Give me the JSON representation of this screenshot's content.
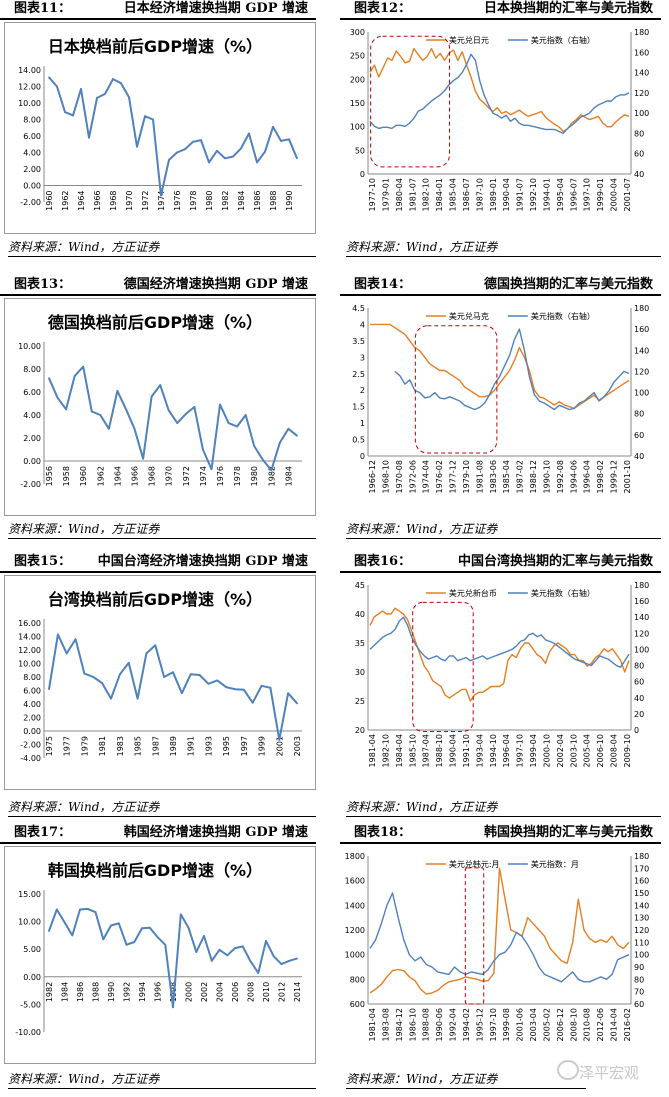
{
  "colors": {
    "blue": "#4F81BD",
    "orange": "#E67E22",
    "red": "#C00000"
  },
  "sections": [
    {
      "left": {
        "num": "图表11：",
        "title": "日本经济增速换挡期 GDP 增速"
      },
      "right": {
        "num": "图表12：",
        "title": "日本换挡期的汇率与美元指数"
      },
      "source": "资料来源：Wind，方正证券"
    },
    {
      "left": {
        "num": "图表13：",
        "title": "德国经济增速换挡期 GDP 增速"
      },
      "right": {
        "num": "图表14：",
        "title": "德国换挡期的汇率与美元指数"
      },
      "source": "资料来源：Wind，方正证券"
    },
    {
      "left": {
        "num": "图表15：",
        "title": "中国台湾经济增速换挡期 GDP 增速"
      },
      "right": {
        "num": "图表16：",
        "title": "中国台湾换挡期的汇率与美元指数"
      },
      "source": "资料来源：Wind，方正证券"
    },
    {
      "left": {
        "num": "图表17：",
        "title": "韩国经济增速换挡期 GDP 增速"
      },
      "right": {
        "num": "图表18：",
        "title": "韩国换挡期的汇率与美元指数"
      },
      "source": "资料来源：Wind，方正证券"
    }
  ],
  "watermark": "泽平宏观",
  "chart_data": [
    {
      "type": "line",
      "title": "日本换档前后GDP增速（%）",
      "x": [
        1960,
        1961,
        1962,
        1963,
        1964,
        1965,
        1966,
        1967,
        1968,
        1969,
        1970,
        1971,
        1972,
        1973,
        1974,
        1975,
        1976,
        1977,
        1978,
        1979,
        1980,
        1981,
        1982,
        1983,
        1984,
        1985,
        1986,
        1987,
        1988,
        1989,
        1990,
        1991
      ],
      "values": [
        13.1,
        12.0,
        8.9,
        8.5,
        11.7,
        5.8,
        10.6,
        11.1,
        12.9,
        12.4,
        10.7,
        4.7,
        8.4,
        8.0,
        -1.2,
        3.1,
        4.0,
        4.4,
        5.3,
        5.5,
        2.8,
        4.2,
        3.3,
        3.5,
        4.5,
        6.3,
        2.8,
        4.1,
        7.1,
        5.4,
        5.6,
        3.3
      ],
      "xticks": [
        "1960",
        "1962",
        "1964",
        "1966",
        "1968",
        "1970",
        "1972",
        "1974",
        "1976",
        "1978",
        "1980",
        "1982",
        "1984",
        "1986",
        "1988",
        "1990"
      ],
      "ylim": [
        -2,
        14
      ],
      "yticks": [
        "-2.00",
        "0.00",
        "2.00",
        "4.00",
        "6.00",
        "8.00",
        "10.00",
        "12.00",
        "14.00"
      ]
    },
    {
      "type": "line",
      "title": "日本换挡期的汇率与美元指数",
      "series": [
        {
          "name": "美元兑日元",
          "axis": "left",
          "values": [
            215,
            230,
            205,
            225,
            245,
            240,
            260,
            248,
            235,
            238,
            265,
            252,
            240,
            248,
            265,
            245,
            255,
            240,
            255,
            262,
            240,
            258,
            230,
            205,
            175,
            158,
            150,
            140,
            132,
            140,
            128,
            132,
            125,
            130,
            135,
            128,
            122,
            125,
            128,
            132,
            120,
            112,
            105,
            100,
            90,
            95,
            108,
            115,
            125,
            120,
            115,
            118,
            122,
            108,
            100,
            100,
            110,
            118,
            125,
            122
          ]
        },
        {
          "name": "美元指数（右轴）",
          "axis": "right",
          "values": [
            92,
            87,
            85,
            86,
            86,
            85,
            88,
            88,
            87,
            90,
            95,
            102,
            104,
            108,
            112,
            115,
            118,
            122,
            128,
            132,
            135,
            140,
            148,
            158,
            152,
            132,
            118,
            108,
            100,
            98,
            95,
            98,
            92,
            95,
            90,
            88,
            88,
            87,
            86,
            85,
            84,
            84,
            84,
            82,
            80,
            85,
            88,
            92,
            96,
            98,
            100,
            105,
            108,
            110,
            112,
            112,
            116,
            118,
            118,
            120
          ]
        }
      ],
      "xticks": [
        "1977-10",
        "1979-01",
        "1980-04",
        "1981-07",
        "1982-10",
        "1984-01",
        "1985-04",
        "1986-07",
        "1987-10",
        "1989-01",
        "1990-04",
        "1991-07",
        "1992-10",
        "1994-01",
        "1995-04",
        "1996-07",
        "1997-10",
        "1999-01",
        "2000-04",
        "2001-07"
      ],
      "ylim_left": [
        0,
        300
      ],
      "yticks_left": [
        "0",
        "50",
        "100",
        "150",
        "200",
        "250",
        "300"
      ],
      "ylim_right": [
        40,
        180
      ],
      "yticks_right": [
        "40",
        "60",
        "80",
        "100",
        "120",
        "140",
        "160",
        "180"
      ]
    },
    {
      "type": "line",
      "title": "德国换档前后GDP增速（%）",
      "x": [
        1956,
        1957,
        1958,
        1959,
        1960,
        1961,
        1962,
        1963,
        1964,
        1965,
        1966,
        1967,
        1968,
        1969,
        1970,
        1971,
        1972,
        1973,
        1974,
        1975,
        1976,
        1977,
        1978,
        1979,
        1980,
        1981,
        1982,
        1983,
        1984,
        1985
      ],
      "values": [
        7.2,
        5.5,
        4.5,
        7.4,
        8.2,
        4.3,
        4.0,
        2.8,
        6.1,
        4.5,
        2.8,
        0.2,
        5.6,
        6.6,
        4.4,
        3.3,
        4.1,
        4.7,
        1.0,
        -0.7,
        4.9,
        3.3,
        3.0,
        4.0,
        1.3,
        0.1,
        -0.8,
        1.6,
        2.8,
        2.2
      ],
      "xticks": [
        "1956",
        "1958",
        "1960",
        "1962",
        "1964",
        "1966",
        "1968",
        "1970",
        "1972",
        "1974",
        "1976",
        "1978",
        "1980",
        "1982",
        "1984"
      ],
      "ylim": [
        -2,
        10
      ],
      "yticks": [
        "-2.00",
        "0.00",
        "2.00",
        "4.00",
        "6.00",
        "8.00",
        "10.00"
      ]
    },
    {
      "type": "line",
      "title": "德国换挡期的汇率与美元指数",
      "series": [
        {
          "name": "美元兑马克",
          "axis": "left",
          "values": [
            4.0,
            4.0,
            4.0,
            4.0,
            4.0,
            3.9,
            3.8,
            3.7,
            3.5,
            3.3,
            3.2,
            3.0,
            2.8,
            2.7,
            2.6,
            2.6,
            2.5,
            2.4,
            2.3,
            2.1,
            2.0,
            1.9,
            1.8,
            1.8,
            1.85,
            2.0,
            2.2,
            2.4,
            2.6,
            2.9,
            3.3,
            3.0,
            2.6,
            2.0,
            1.8,
            1.75,
            1.65,
            1.55,
            1.65,
            1.55,
            1.5,
            1.45,
            1.55,
            1.65,
            1.75,
            1.85,
            1.7,
            1.8,
            1.9,
            2.0,
            2.1,
            2.2,
            2.3
          ]
        },
        {
          "name": "美元指数（右轴）",
          "axis": "right",
          "values": [
            null,
            null,
            null,
            null,
            null,
            120,
            116,
            108,
            112,
            102,
            100,
            95,
            96,
            100,
            95,
            94,
            96,
            94,
            92,
            88,
            86,
            84,
            86,
            90,
            98,
            108,
            115,
            125,
            135,
            150,
            160,
            140,
            115,
            98,
            92,
            90,
            87,
            84,
            88,
            86,
            84,
            85,
            90,
            92,
            96,
            100,
            92,
            96,
            102,
            110,
            115,
            120,
            118
          ]
        }
      ],
      "xticks": [
        "1966-12",
        "1968-10",
        "1970-08",
        "1972-06",
        "1974-04",
        "1976-02",
        "1977-12",
        "1979-10",
        "1981-08",
        "1983-06",
        "1985-04",
        "1987-02",
        "1988-12",
        "1990-10",
        "1992-08",
        "1994-06",
        "1996-04",
        "1998-02",
        "1999-12",
        "2001-10"
      ],
      "ylim_left": [
        0,
        4.5
      ],
      "yticks_left": [
        "0",
        "0.5",
        "1",
        "1.5",
        "2",
        "2.5",
        "3",
        "3.5",
        "4",
        "4.5"
      ],
      "ylim_right": [
        40,
        180
      ],
      "yticks_right": [
        "40",
        "60",
        "80",
        "100",
        "120",
        "140",
        "160",
        "180"
      ]
    },
    {
      "type": "line",
      "title": "台湾换档前后GDP增速（%）",
      "x": [
        1975,
        1976,
        1977,
        1978,
        1979,
        1980,
        1981,
        1982,
        1983,
        1984,
        1985,
        1986,
        1987,
        1988,
        1989,
        1990,
        1991,
        1992,
        1993,
        1994,
        1995,
        1996,
        1997,
        1998,
        1999,
        2000,
        2001,
        2002,
        2003
      ],
      "values": [
        6.2,
        14.3,
        11.5,
        13.6,
        8.5,
        8.0,
        7.1,
        4.8,
        8.4,
        10.1,
        4.8,
        11.5,
        12.7,
        8.0,
        8.7,
        5.6,
        8.4,
        8.3,
        7.0,
        7.5,
        6.5,
        6.2,
        6.1,
        4.2,
        6.7,
        6.4,
        -1.3,
        5.6,
        4.1
      ],
      "xticks": [
        "1975",
        "1977",
        "1979",
        "1981",
        "1983",
        "1985",
        "1987",
        "1989",
        "1991",
        "1993",
        "1995",
        "1997",
        "1999",
        "2001",
        "2003"
      ],
      "ylim": [
        -4,
        16
      ],
      "yticks": [
        "-4.00",
        "-2.00",
        "0.00",
        "2.00",
        "4.00",
        "6.00",
        "8.00",
        "10.00",
        "12.00",
        "14.00",
        "16.00"
      ]
    },
    {
      "type": "line",
      "title": "中国台湾换挡期的汇率与美元指数",
      "series": [
        {
          "name": "美元兑新台币",
          "axis": "left",
          "values": [
            38,
            39.5,
            40,
            40.5,
            40,
            40,
            41,
            40.5,
            40,
            39,
            37,
            35,
            33,
            31,
            30,
            28.5,
            28,
            27.5,
            26,
            25.5,
            26,
            26.5,
            27,
            27,
            25,
            26,
            26.5,
            26.5,
            27,
            27.5,
            27.5,
            27.5,
            28,
            32,
            33,
            32.5,
            34,
            35,
            35,
            34,
            33,
            32.5,
            31.5,
            33.5,
            34.5,
            35,
            34.5,
            34,
            33,
            33,
            32,
            32,
            31,
            31.5,
            32.5,
            33,
            34,
            33.5,
            34,
            33,
            32,
            30,
            32
          ]
        },
        {
          "name": "美元指数（右轴）",
          "axis": "right",
          "values": [
            100,
            105,
            110,
            115,
            118,
            120,
            125,
            135,
            140,
            130,
            115,
            105,
            98,
            92,
            88,
            90,
            92,
            88,
            86,
            92,
            92,
            86,
            88,
            90,
            86,
            88,
            90,
            92,
            88,
            90,
            92,
            94,
            96,
            98,
            100,
            104,
            110,
            112,
            118,
            120,
            116,
            118,
            112,
            110,
            108,
            104,
            100,
            96,
            92,
            88,
            86,
            84,
            82,
            80,
            86,
            92,
            90,
            88,
            84,
            80,
            78,
            86,
            94
          ]
        }
      ],
      "xticks": [
        "1981-04",
        "1982-10",
        "1984-04",
        "1985-10",
        "1987-04",
        "1988-10",
        "1990-04",
        "1991-10",
        "1993-04",
        "1994-10",
        "1996-04",
        "1997-10",
        "1999-04",
        "2000-10",
        "2002-04",
        "2003-10",
        "2005-04",
        "2006-10",
        "2008-04",
        "2009-10"
      ],
      "ylim_left": [
        20,
        45
      ],
      "yticks_left": [
        "20",
        "25",
        "30",
        "35",
        "40",
        "45"
      ],
      "ylim_right": [
        0,
        180
      ],
      "yticks_right": [
        "0",
        "20",
        "40",
        "60",
        "80",
        "100",
        "120",
        "140",
        "160",
        "180"
      ]
    },
    {
      "type": "line",
      "title": "韩国换档前后GDP增速（%）",
      "x": [
        1982,
        1983,
        1984,
        1985,
        1986,
        1987,
        1988,
        1989,
        1990,
        1991,
        1992,
        1993,
        1994,
        1995,
        1996,
        1997,
        1998,
        1999,
        2000,
        2001,
        2002,
        2003,
        2004,
        2005,
        2006,
        2007,
        2008,
        2009,
        2010,
        2011,
        2012,
        2013,
        2014
      ],
      "values": [
        8.3,
        12.2,
        9.9,
        7.5,
        12.2,
        12.3,
        11.7,
        6.8,
        9.3,
        9.7,
        5.8,
        6.3,
        8.8,
        8.9,
        7.2,
        5.8,
        -5.5,
        11.3,
        8.9,
        4.5,
        7.4,
        2.9,
        4.9,
        3.9,
        5.2,
        5.5,
        2.8,
        0.7,
        6.5,
        3.7,
        2.3,
        2.9,
        3.3
      ],
      "xticks": [
        "1982",
        "1984",
        "1986",
        "1988",
        "1990",
        "1992",
        "1994",
        "1996",
        "1998",
        "2000",
        "2002",
        "2004",
        "2006",
        "2008",
        "2010",
        "2012",
        "2014"
      ],
      "ylim": [
        -10,
        15
      ],
      "yticks": [
        "-10.00",
        "-5.00",
        "0.00",
        "5.00",
        "10.00",
        "15.00"
      ]
    },
    {
      "type": "line",
      "title": "韩国换挡期的汇率与美元指数",
      "series": [
        {
          "name": "美元兑韩元:月",
          "axis": "left",
          "values": [
            690,
            720,
            760,
            820,
            870,
            880,
            870,
            820,
            790,
            720,
            680,
            690,
            710,
            750,
            780,
            790,
            800,
            820,
            810,
            800,
            785,
            790,
            850,
            1700,
            1450,
            1200,
            1180,
            1150,
            1300,
            1250,
            1200,
            1150,
            1050,
            1000,
            950,
            930,
            1100,
            1450,
            1200,
            1130,
            1100,
            1120,
            1100,
            1150,
            1080,
            1050,
            1100
          ]
        },
        {
          "name": "美元指数：月",
          "axis": "right",
          "values": [
            105,
            112,
            125,
            140,
            150,
            130,
            112,
            100,
            95,
            98,
            92,
            90,
            86,
            85,
            84,
            90,
            86,
            84,
            86,
            85,
            84,
            88,
            95,
            100,
            102,
            108,
            118,
            115,
            108,
            100,
            90,
            84,
            82,
            80,
            78,
            82,
            86,
            80,
            78,
            78,
            80,
            82,
            80,
            84,
            96,
            98,
            100
          ]
        }
      ],
      "xticks": [
        "1981-04",
        "1983-08",
        "1984-12",
        "1986-10",
        "1988-08",
        "1990-06",
        "1992-04",
        "1994-02",
        "1995-12",
        "1997-10",
        "1999-08",
        "2001-06",
        "2003-04",
        "2005-02",
        "2006-12",
        "2008-10",
        "2010-08",
        "2012-06",
        "2014-04",
        "2016-02"
      ],
      "ylim_left": [
        600,
        1800
      ],
      "yticks_left": [
        "600",
        "800",
        "1000",
        "1200",
        "1400",
        "1600",
        "1800"
      ],
      "ylim_right": [
        60,
        180
      ],
      "yticks_right": [
        "60",
        "70",
        "80",
        "90",
        "100",
        "110",
        "120",
        "130",
        "140",
        "150",
        "160",
        "170",
        "180"
      ]
    }
  ]
}
